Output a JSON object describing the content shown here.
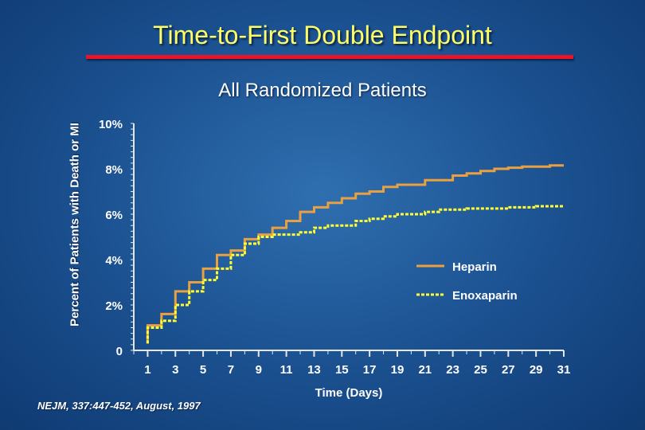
{
  "slide": {
    "title": "Time-to-First Double Endpoint",
    "subtitle": "All Randomized Patients",
    "source": "NEJM, 337:447-452, August, 1997",
    "title_color": "#ffff66",
    "rule_color": "#e8142a"
  },
  "chart_data": {
    "type": "line",
    "title": "All Randomized Patients",
    "xlabel": "Time (Days)",
    "ylabel": "Percent of Patients with Death or MI",
    "xlim": [
      0,
      31
    ],
    "ylim": [
      0,
      10
    ],
    "x_ticks": [
      1,
      3,
      5,
      7,
      9,
      11,
      13,
      15,
      17,
      19,
      21,
      23,
      25,
      27,
      29,
      31
    ],
    "y_ticks": [
      {
        "value": 0,
        "label": "0"
      },
      {
        "value": 2,
        "label": "2%"
      },
      {
        "value": 4,
        "label": "4%"
      },
      {
        "value": 6,
        "label": "6%"
      },
      {
        "value": 8,
        "label": "8%"
      },
      {
        "value": 10,
        "label": "10%"
      }
    ],
    "legend_position": "right",
    "series": [
      {
        "name": "Heparin",
        "color": "#e8a040",
        "style": "solid",
        "points": [
          [
            1,
            0.3
          ],
          [
            1,
            1.1
          ],
          [
            2,
            1.1
          ],
          [
            2,
            1.6
          ],
          [
            3,
            1.6
          ],
          [
            3,
            2.6
          ],
          [
            4,
            2.6
          ],
          [
            4,
            3.0
          ],
          [
            5,
            3.0
          ],
          [
            5,
            3.6
          ],
          [
            6,
            3.6
          ],
          [
            6,
            4.2
          ],
          [
            7,
            4.2
          ],
          [
            7,
            4.4
          ],
          [
            8,
            4.4
          ],
          [
            8,
            4.9
          ],
          [
            9,
            4.9
          ],
          [
            9,
            5.1
          ],
          [
            10,
            5.1
          ],
          [
            10,
            5.4
          ],
          [
            11,
            5.4
          ],
          [
            11,
            5.7
          ],
          [
            12,
            5.7
          ],
          [
            12,
            6.1
          ],
          [
            13,
            6.1
          ],
          [
            13,
            6.3
          ],
          [
            14,
            6.3
          ],
          [
            14,
            6.5
          ],
          [
            15,
            6.5
          ],
          [
            15,
            6.7
          ],
          [
            16,
            6.7
          ],
          [
            16,
            6.9
          ],
          [
            17,
            6.9
          ],
          [
            17,
            7.0
          ],
          [
            18,
            7.0
          ],
          [
            18,
            7.2
          ],
          [
            19,
            7.2
          ],
          [
            19,
            7.3
          ],
          [
            21,
            7.3
          ],
          [
            21,
            7.5
          ],
          [
            23,
            7.5
          ],
          [
            23,
            7.7
          ],
          [
            24,
            7.7
          ],
          [
            24,
            7.8
          ],
          [
            25,
            7.8
          ],
          [
            25,
            7.9
          ],
          [
            26,
            7.9
          ],
          [
            26,
            8.0
          ],
          [
            27,
            8.0
          ],
          [
            27,
            8.05
          ],
          [
            28,
            8.05
          ],
          [
            28,
            8.1
          ],
          [
            30,
            8.1
          ],
          [
            30,
            8.15
          ],
          [
            31,
            8.15
          ]
        ]
      },
      {
        "name": "Enoxaparin",
        "color": "#ffff33",
        "style": "dashed",
        "points": [
          [
            1,
            0.3
          ],
          [
            1,
            1.0
          ],
          [
            2,
            1.0
          ],
          [
            2,
            1.3
          ],
          [
            3,
            1.3
          ],
          [
            3,
            2.0
          ],
          [
            4,
            2.0
          ],
          [
            4,
            2.6
          ],
          [
            5,
            2.6
          ],
          [
            5,
            3.1
          ],
          [
            6,
            3.1
          ],
          [
            6,
            3.6
          ],
          [
            7,
            3.6
          ],
          [
            7,
            4.2
          ],
          [
            8,
            4.2
          ],
          [
            8,
            4.7
          ],
          [
            9,
            4.7
          ],
          [
            9,
            5.0
          ],
          [
            10,
            5.0
          ],
          [
            10,
            5.1
          ],
          [
            12,
            5.1
          ],
          [
            12,
            5.2
          ],
          [
            13,
            5.2
          ],
          [
            13,
            5.4
          ],
          [
            14,
            5.4
          ],
          [
            14,
            5.5
          ],
          [
            16,
            5.5
          ],
          [
            16,
            5.7
          ],
          [
            17,
            5.7
          ],
          [
            17,
            5.8
          ],
          [
            18,
            5.8
          ],
          [
            18,
            5.9
          ],
          [
            19,
            5.9
          ],
          [
            19,
            6.0
          ],
          [
            21,
            6.0
          ],
          [
            21,
            6.1
          ],
          [
            22,
            6.1
          ],
          [
            22,
            6.2
          ],
          [
            24,
            6.2
          ],
          [
            24,
            6.25
          ],
          [
            27,
            6.25
          ],
          [
            27,
            6.3
          ],
          [
            29,
            6.3
          ],
          [
            29,
            6.35
          ],
          [
            31,
            6.35
          ]
        ]
      }
    ]
  }
}
